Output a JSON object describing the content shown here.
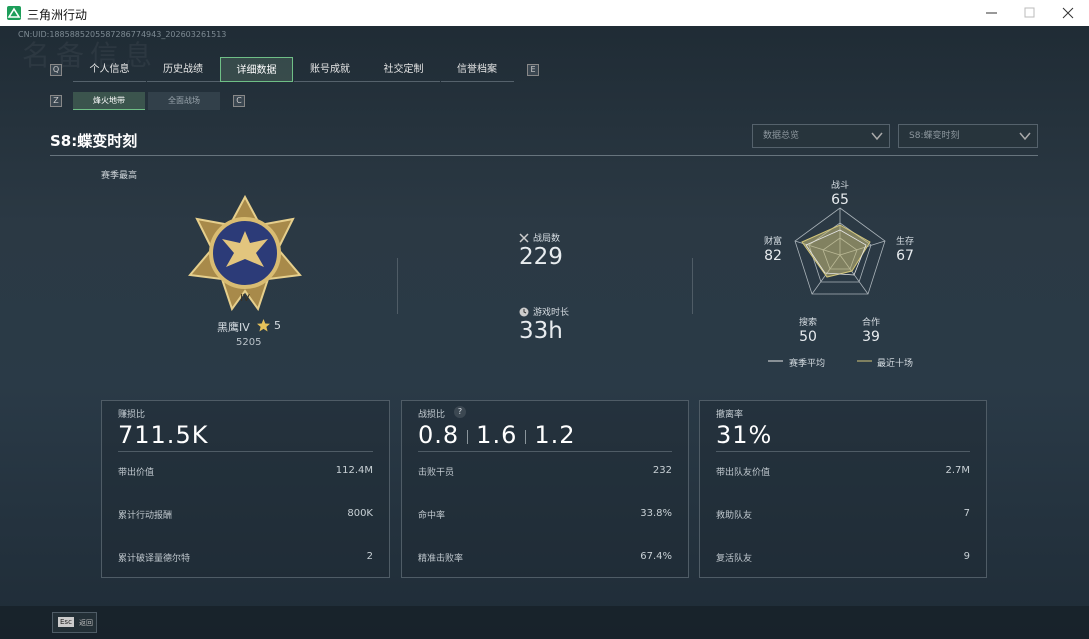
{
  "window": {
    "title": "三角洲行动"
  },
  "uid": "CN:UID:1885885205587286774943_202603261513",
  "tabs": {
    "prev_key": "Q",
    "next_key": "E",
    "items": [
      "个人信息",
      "历史战绩",
      "详细数据",
      "账号成就",
      "社交定制",
      "信誉档案"
    ]
  },
  "subtabs": {
    "prev_key": "Z",
    "next_key": "C",
    "items": [
      "烽火地带",
      "全面战场"
    ]
  },
  "season": {
    "title": "S8:蝶变时刻",
    "dropdowns": [
      "数据总览",
      "S8:蝶变时刻"
    ]
  },
  "rank": {
    "label": "赛季最高",
    "name": "黑鹰IV",
    "stars": "5",
    "score": "5205"
  },
  "stats": [
    {
      "label": "战局数",
      "value": "229"
    },
    {
      "label": "游戏时长",
      "value": "33h"
    }
  ],
  "radar": {
    "axes": [
      {
        "label": "战斗",
        "value": "65"
      },
      {
        "label": "生存",
        "value": "67"
      },
      {
        "label": "合作",
        "value": "39"
      },
      {
        "label": "搜索",
        "value": "50"
      },
      {
        "label": "财富",
        "value": "82"
      }
    ],
    "legend": [
      "赛季平均",
      "最近十场"
    ]
  },
  "cards": [
    {
      "label": "赚损比",
      "value": "711.5K",
      "rows": [
        [
          "带出价值",
          "112.4M"
        ],
        [
          "累计行动报酬",
          "800K"
        ],
        [
          "累计破译量德尔特",
          "2"
        ]
      ]
    },
    {
      "label": "战损比",
      "help": "?",
      "values": [
        "0.8",
        "1.6",
        "1.2"
      ],
      "rows": [
        [
          "击败干员",
          "232"
        ],
        [
          "命中率",
          "33.8%"
        ],
        [
          "精准击败率",
          "67.4%"
        ]
      ]
    },
    {
      "label": "撤离率",
      "value": "31%",
      "rows": [
        [
          "带出队友价值",
          "2.7M"
        ],
        [
          "救助队友",
          "7"
        ],
        [
          "复活队友",
          "9"
        ]
      ]
    }
  ],
  "footer": {
    "key": "Esc",
    "label": "返回"
  }
}
